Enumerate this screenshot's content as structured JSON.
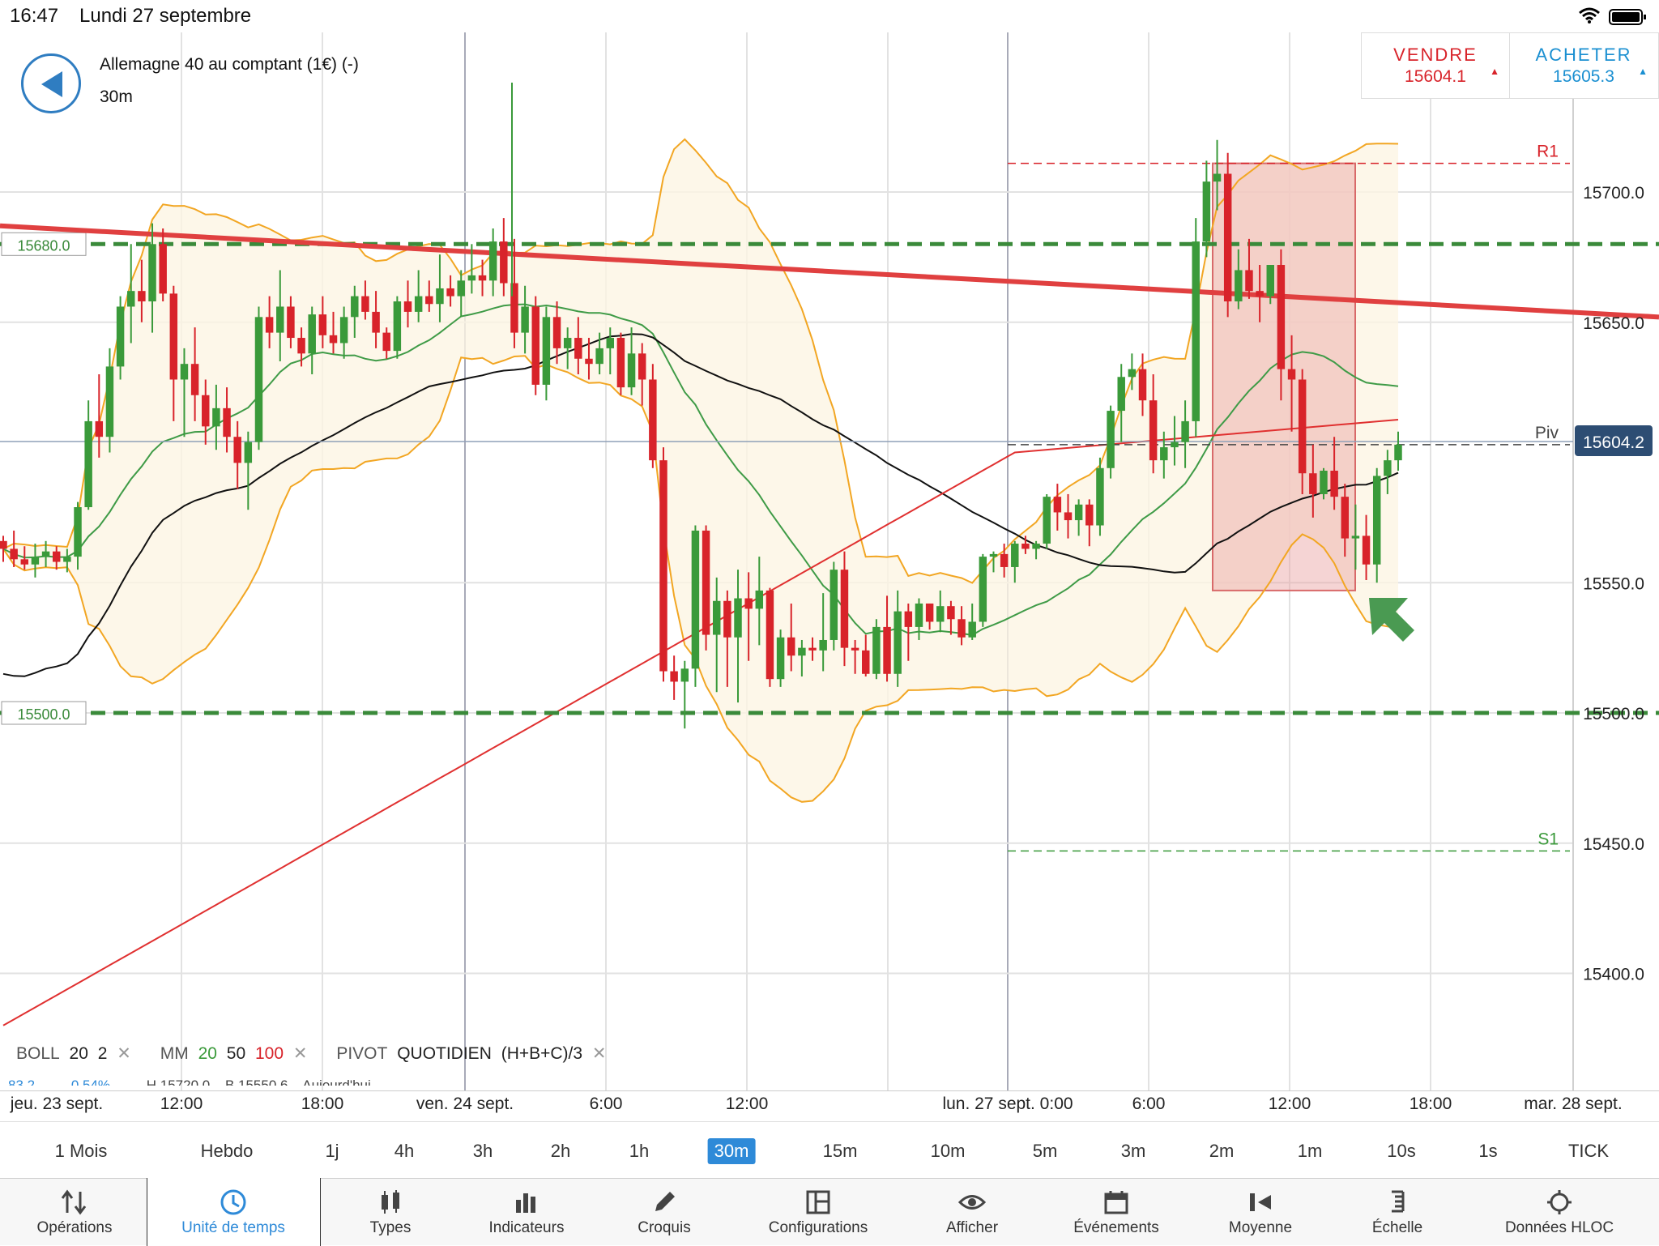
{
  "status_bar": {
    "time": "16:47",
    "date": "Lundi 27 septembre"
  },
  "instrument": {
    "name": "Allemagne 40 au comptant (1€) (-)",
    "timeframe": "30m"
  },
  "trade": {
    "sell_label": "VENDRE",
    "sell_price": "15604.1",
    "buy_label": "ACHETER",
    "buy_price": "15605.3"
  },
  "colors": {
    "bull": "#3a9a3a",
    "bear": "#d8232a",
    "accent": "#2e8ad8",
    "boll": "#f2a623"
  },
  "chart_data": {
    "type": "candlestick",
    "y_axis_labels": [
      "15700.0",
      "15650.0",
      "15604.2",
      "15550.0",
      "15500.0",
      "15450.0",
      "15400.0"
    ],
    "y_axis_values": [
      15700,
      15650,
      15550,
      15500,
      15450,
      15400
    ],
    "ylim": [
      15360,
      15775
    ],
    "current_price": {
      "value": 15604.2,
      "label": "15604.2"
    },
    "levels": [
      {
        "label": "15680.0",
        "value": 15680,
        "color": "#3a8a3a",
        "style": "dashed"
      },
      {
        "label": "15500.0",
        "value": 15500,
        "color": "#3a8a3a",
        "style": "dashed"
      }
    ],
    "pivots": [
      {
        "label": "R1",
        "value": 15711,
        "color": "#d8232a"
      },
      {
        "label": "Piv",
        "value": 15603,
        "color": "#444444"
      },
      {
        "label": "S1",
        "value": 15447,
        "color": "#3a9a3a"
      }
    ],
    "trendline": {
      "from": 15687,
      "to": 15652,
      "color": "#e04040"
    },
    "highlight_zone": {
      "high": 15711,
      "low": 15547,
      "color": "#e8a0a0"
    },
    "x_labels": [
      "jeu. 23 sept.",
      "12:00",
      "18:00",
      "ven. 24 sept.",
      "6:00",
      "12:00",
      "lun. 27 sept. 0:00",
      "6:00",
      "12:00",
      "18:00",
      "mar. 28 sept."
    ],
    "candles": [
      [
        15566,
        15568,
        15558,
        15563
      ],
      [
        15563,
        15570,
        15556,
        15559
      ],
      [
        15559,
        15564,
        15555,
        15557
      ],
      [
        15557,
        15565,
        15552,
        15560
      ],
      [
        15560,
        15566,
        15556,
        15562
      ],
      [
        15562,
        15564,
        15555,
        15558
      ],
      [
        15558,
        15563,
        15554,
        15560
      ],
      [
        15560,
        15581,
        15555,
        15579
      ],
      [
        15579,
        15620,
        15578,
        15612
      ],
      [
        15612,
        15630,
        15598,
        15606
      ],
      [
        15606,
        15640,
        15600,
        15633
      ],
      [
        15633,
        15660,
        15628,
        15656
      ],
      [
        15656,
        15680,
        15642,
        15662
      ],
      [
        15662,
        15674,
        15650,
        15658
      ],
      [
        15658,
        15688,
        15646,
        15680
      ],
      [
        15680,
        15686,
        15658,
        15661
      ],
      [
        15661,
        15664,
        15612,
        15628
      ],
      [
        15628,
        15640,
        15606,
        15634
      ],
      [
        15634,
        15648,
        15612,
        15622
      ],
      [
        15622,
        15628,
        15603,
        15610
      ],
      [
        15610,
        15626,
        15601,
        15617
      ],
      [
        15617,
        15625,
        15600,
        15606
      ],
      [
        15606,
        15612,
        15586,
        15596
      ],
      [
        15596,
        15608,
        15578,
        15604
      ],
      [
        15604,
        15656,
        15601,
        15652
      ],
      [
        15652,
        15660,
        15640,
        15646
      ],
      [
        15646,
        15670,
        15635,
        15656
      ],
      [
        15656,
        15660,
        15640,
        15644
      ],
      [
        15644,
        15648,
        15633,
        15638
      ],
      [
        15638,
        15656,
        15630,
        15653
      ],
      [
        15653,
        15660,
        15640,
        15645
      ],
      [
        15645,
        15654,
        15638,
        15642
      ],
      [
        15642,
        15656,
        15636,
        15652
      ],
      [
        15652,
        15664,
        15644,
        15660
      ],
      [
        15660,
        15666,
        15651,
        15654
      ],
      [
        15654,
        15662,
        15640,
        15646
      ],
      [
        15646,
        15648,
        15636,
        15639
      ],
      [
        15639,
        15660,
        15636,
        15658
      ],
      [
        15658,
        15666,
        15648,
        15654
      ],
      [
        15654,
        15670,
        15650,
        15660
      ],
      [
        15660,
        15666,
        15654,
        15657
      ],
      [
        15657,
        15676,
        15650,
        15663
      ],
      [
        15663,
        15668,
        15656,
        15660
      ],
      [
        15660,
        15670,
        15652,
        15666
      ],
      [
        15666,
        15680,
        15661,
        15668
      ],
      [
        15668,
        15674,
        15660,
        15666
      ],
      [
        15666,
        15686,
        15660,
        15681
      ],
      [
        15681,
        15690,
        15660,
        15665
      ],
      [
        15665,
        15682,
        15640,
        15646
      ],
      [
        15646,
        15664,
        15638,
        15656
      ],
      [
        15656,
        15660,
        15622,
        15626
      ],
      [
        15626,
        15656,
        15620,
        15652
      ],
      [
        15652,
        15658,
        15634,
        15640
      ],
      [
        15640,
        15648,
        15632,
        15644
      ],
      [
        15644,
        15652,
        15630,
        15636
      ],
      [
        15636,
        15644,
        15628,
        15634
      ],
      [
        15634,
        15646,
        15630,
        15640
      ],
      [
        15640,
        15648,
        15630,
        15644
      ],
      [
        15644,
        15646,
        15622,
        15625
      ],
      [
        15625,
        15648,
        15622,
        15638
      ],
      [
        15638,
        15642,
        15618,
        15628
      ],
      [
        15628,
        15634,
        15594,
        15597
      ],
      [
        15597,
        15602,
        15512,
        15516
      ],
      [
        15516,
        15522,
        15505,
        15512
      ],
      [
        15512,
        15520,
        15494,
        15517
      ],
      [
        15517,
        15572,
        15510,
        15570
      ],
      [
        15570,
        15572,
        15524,
        15530
      ],
      [
        15530,
        15552,
        15508,
        15543
      ],
      [
        15543,
        15547,
        15510,
        15529
      ],
      [
        15529,
        15555,
        15504,
        15544
      ],
      [
        15544,
        15554,
        15520,
        15540
      ],
      [
        15540,
        15560,
        15526,
        15547
      ],
      [
        15547,
        15548,
        15510,
        15513
      ],
      [
        15513,
        15532,
        15510,
        15529
      ],
      [
        15529,
        15542,
        15516,
        15522
      ],
      [
        15522,
        15528,
        15514,
        15525
      ],
      [
        15525,
        15529,
        15520,
        15524
      ],
      [
        15524,
        15546,
        15516,
        15528
      ],
      [
        15528,
        15558,
        15524,
        15555
      ],
      [
        15555,
        15562,
        15518,
        15525
      ],
      [
        15525,
        15528,
        15515,
        15524
      ],
      [
        15524,
        15530,
        15514,
        15515
      ],
      [
        15515,
        15536,
        15513,
        15533
      ],
      [
        15533,
        15545,
        15512,
        15515
      ],
      [
        15515,
        15547,
        15510,
        15539
      ],
      [
        15539,
        15542,
        15520,
        15533
      ],
      [
        15533,
        15544,
        15528,
        15542
      ],
      [
        15542,
        15542,
        15532,
        15535
      ],
      [
        15535,
        15547,
        15531,
        15541
      ],
      [
        15541,
        15543,
        15530,
        15536
      ],
      [
        15536,
        15541,
        15526,
        15529
      ],
      [
        15529,
        15542,
        15528,
        15535
      ],
      [
        15535,
        15561,
        15533,
        15560
      ],
      [
        15560,
        15562,
        15554,
        15561
      ],
      [
        15561,
        15565,
        15552,
        15556
      ],
      [
        15556,
        15566,
        15550,
        15565
      ],
      [
        15565,
        15568,
        15561,
        15563
      ],
      [
        15563,
        15566,
        15559,
        15565
      ],
      [
        15565,
        15584,
        15563,
        15583
      ],
      [
        15583,
        15588,
        15570,
        15577
      ],
      [
        15577,
        15584,
        15567,
        15574
      ],
      [
        15574,
        15582,
        15568,
        15580
      ],
      [
        15580,
        15582,
        15564,
        15572
      ],
      [
        15572,
        15598,
        15568,
        15594
      ],
      [
        15594,
        15618,
        15590,
        15616
      ],
      [
        15616,
        15634,
        15604,
        15629
      ],
      [
        15629,
        15638,
        15624,
        15632
      ],
      [
        15632,
        15638,
        15614,
        15620
      ],
      [
        15620,
        15630,
        15592,
        15597
      ],
      [
        15597,
        15608,
        15590,
        15602
      ],
      [
        15602,
        15614,
        15595,
        15604
      ],
      [
        15604,
        15620,
        15594,
        15612
      ],
      [
        15612,
        15690,
        15606,
        15681
      ],
      [
        15681,
        15712,
        15675,
        15704
      ],
      [
        15704,
        15720,
        15693,
        15707
      ],
      [
        15707,
        15715,
        15652,
        15658
      ],
      [
        15658,
        15678,
        15655,
        15670
      ],
      [
        15670,
        15682,
        15659,
        15662
      ],
      [
        15662,
        15672,
        15650,
        15660
      ],
      [
        15660,
        15672,
        15657,
        15672
      ],
      [
        15672,
        15678,
        15620,
        15632
      ],
      [
        15632,
        15645,
        15608,
        15628
      ],
      [
        15628,
        15632,
        15584,
        15592
      ],
      [
        15592,
        15603,
        15575,
        15584
      ],
      [
        15584,
        15594,
        15582,
        15593
      ],
      [
        15593,
        15606,
        15578,
        15583
      ],
      [
        15583,
        15588,
        15560,
        15567
      ],
      [
        15567,
        15580,
        15555,
        15568
      ],
      [
        15568,
        15576,
        15551,
        15557
      ],
      [
        15557,
        15594,
        15550,
        15591
      ],
      [
        15591,
        15601,
        15584,
        15597
      ],
      [
        15597,
        15608,
        15593,
        15603
      ]
    ]
  },
  "indicator_legend": {
    "boll": "BOLL",
    "boll_p1": "20",
    "boll_p2": "2",
    "mm": "MM",
    "mm_1": "20",
    "mm_2": "50",
    "mm_3": "100",
    "pivot": "PIVOT",
    "pivot_period": "QUOTIDIEN",
    "pivot_formula": "(H+B+C)/3",
    "remove": "✕"
  },
  "info_line": {
    "a": "83.2",
    "b": "0.54%",
    "h": "H 15720.0",
    "l": "B 15550.6",
    "period": "Aujourd'hui"
  },
  "timeframes": [
    "1 Mois",
    "Hebdo",
    "1j",
    "4h",
    "3h",
    "2h",
    "1h",
    "30m",
    "15m",
    "10m",
    "5m",
    "3m",
    "2m",
    "1m",
    "10s",
    "1s",
    "TICK"
  ],
  "toolbar": [
    "Opérations",
    "Unité de temps",
    "Types",
    "Indicateurs",
    "Croquis",
    "Configurations",
    "Afficher",
    "Événements",
    "Moyenne",
    "Échelle",
    "Données HLOC"
  ]
}
